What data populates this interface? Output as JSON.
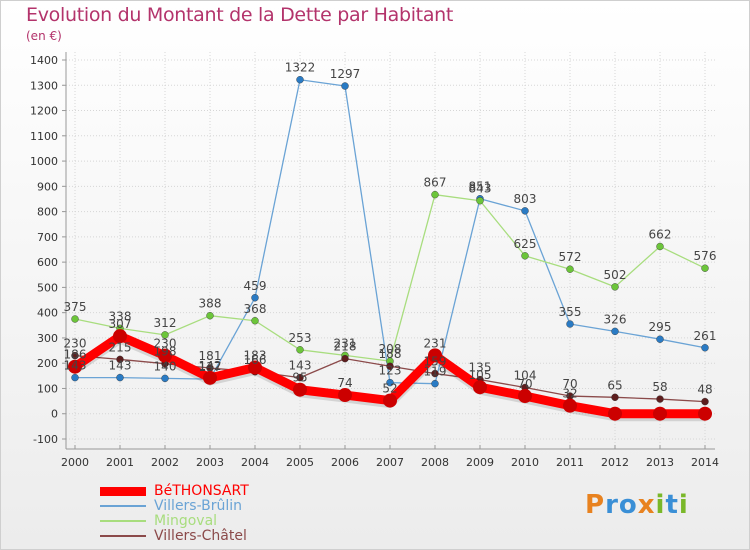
{
  "title": "Evolution du Montant de la Dette par Habitant",
  "unit_label": "(en €)",
  "brand": {
    "letters": [
      "P",
      "r",
      "o",
      "x",
      "i",
      "t",
      "i"
    ],
    "colors": [
      "#e8821f",
      "#3a8fd6",
      "#3a8fd6",
      "#e8821f",
      "#7ab829",
      "#3a8fd6",
      "#7ab829"
    ]
  },
  "chart_data": {
    "type": "line",
    "title": "Evolution du Montant de la Dette par Habitant",
    "ylabel": "(en €)",
    "xlabel": "",
    "ylim": [
      -100,
      1400
    ],
    "yticks": [
      -100,
      0,
      100,
      200,
      300,
      400,
      500,
      600,
      700,
      800,
      900,
      1000,
      1100,
      1200,
      1300,
      1400
    ],
    "x": [
      "2000",
      "2001",
      "2002",
      "2003",
      "2004",
      "2005",
      "2006",
      "2007",
      "2008",
      "2009",
      "2010",
      "2011",
      "2012",
      "2013",
      "2014"
    ],
    "grid": "horizontal",
    "legend_position": "bottom-left",
    "series": [
      {
        "name": "BéTHONSART",
        "color": "#ff0000",
        "marker": "#cc0000",
        "width": 9,
        "values": [
          186,
          307,
          230,
          142,
          183,
          95,
          74,
          52,
          231,
          105,
          70,
          32,
          0,
          0,
          0
        ],
        "labels": [
          "186",
          "307",
          "230",
          "142",
          "183",
          "95",
          "74",
          "52",
          "231",
          "105",
          "70",
          "32",
          "",
          "",
          ""
        ]
      },
      {
        "name": "Villers-Brûlin",
        "color": "#6aa3d5",
        "marker": "#2a7bc4",
        "width": 1.3,
        "values": [
          143,
          143,
          140,
          137,
          459,
          1322,
          1297,
          123,
          119,
          851,
          803,
          355,
          326,
          295,
          261
        ],
        "labels": [
          "143",
          "143",
          "140",
          "137",
          "459",
          "1322",
          "1297",
          "123",
          "119",
          "851",
          "803",
          "355",
          "326",
          "295",
          "261"
        ]
      },
      {
        "name": "Mingoval",
        "color": "#a8dd7e",
        "marker": "#6cc53a",
        "width": 1.3,
        "values": [
          375,
          338,
          312,
          388,
          368,
          253,
          231,
          208,
          867,
          843,
          625,
          572,
          502,
          662,
          576
        ],
        "labels": [
          "375",
          "338",
          "312",
          "388",
          "368",
          "253",
          "231",
          "208",
          "867",
          "843",
          "625",
          "572",
          "502",
          "662",
          "576"
        ]
      },
      {
        "name": "Villers-Châtel",
        "color": "#8b4a4a",
        "marker": "#5e1e1e",
        "width": 1.3,
        "values": [
          230,
          215,
          198,
          181,
          166,
          143,
          218,
          188,
          159,
          135,
          104,
          70,
          65,
          58,
          48
        ],
        "labels": [
          "230",
          "215",
          "198",
          "181",
          "166",
          "143",
          "218",
          "188",
          "159",
          "135",
          "104",
          "70",
          "65",
          "58",
          "48"
        ]
      }
    ]
  }
}
